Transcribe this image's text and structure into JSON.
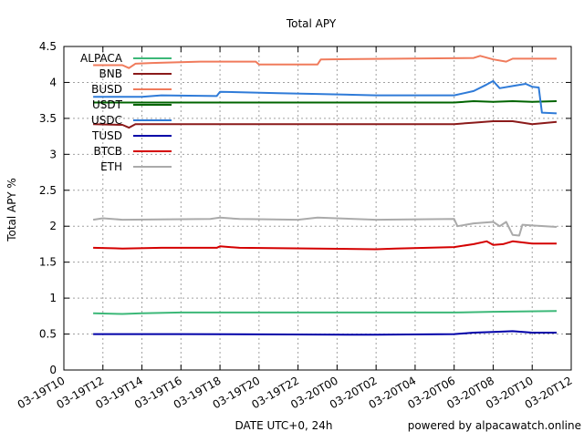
{
  "chart_data": {
    "type": "line",
    "title": "Total APY",
    "xlabel": "DATE UTC+0, 24h",
    "ylabel": "Total APY %",
    "footer": "powered by alpacawatch.online",
    "ylim": [
      0,
      4.5
    ],
    "yticks": [
      "0",
      "0.5",
      "1",
      "1.5",
      "2",
      "2.5",
      "3",
      "3.5",
      "4",
      "4.5"
    ],
    "xlim": [
      "03-19T10",
      "03-20T12"
    ],
    "xticks": [
      "03-19T10",
      "03-19T12",
      "03-19T14",
      "03-19T16",
      "03-19T18",
      "03-19T20",
      "03-19T22",
      "03-20T00",
      "03-20T02",
      "03-20T04",
      "03-20T06",
      "03-20T08",
      "03-20T10",
      "03-20T12"
    ],
    "grid": true,
    "legend_position": "top-left",
    "series": [
      {
        "name": "ALPACA",
        "color": "#3cb878",
        "points": [
          [
            "03-19T11:30",
            0.79
          ],
          [
            "03-19T13:00",
            0.78
          ],
          [
            "03-19T14:00",
            0.79
          ],
          [
            "03-19T16:00",
            0.8
          ],
          [
            "03-20T06:00",
            0.8
          ],
          [
            "03-20T08:00",
            0.81
          ],
          [
            "03-20T11:15",
            0.82
          ]
        ]
      },
      {
        "name": "BNB",
        "color": "#8b1a1a",
        "points": [
          [
            "03-19T11:30",
            3.42
          ],
          [
            "03-19T13:00",
            3.41
          ],
          [
            "03-19T13:20",
            3.37
          ],
          [
            "03-19T13:40",
            3.42
          ],
          [
            "03-19T16:00",
            3.42
          ],
          [
            "03-20T06:00",
            3.42
          ],
          [
            "03-20T07:00",
            3.44
          ],
          [
            "03-20T08:00",
            3.46
          ],
          [
            "03-20T09:00",
            3.46
          ],
          [
            "03-20T10:00",
            3.42
          ],
          [
            "03-20T11:15",
            3.45
          ]
        ]
      },
      {
        "name": "BUSD",
        "color": "#f07b5c",
        "points": [
          [
            "03-19T11:30",
            4.24
          ],
          [
            "03-19T13:00",
            4.24
          ],
          [
            "03-19T13:20",
            4.2
          ],
          [
            "03-19T13:40",
            4.26
          ],
          [
            "03-19T14:30",
            4.27
          ],
          [
            "03-19T17:00",
            4.29
          ],
          [
            "03-19T19:50",
            4.29
          ],
          [
            "03-19T20:00",
            4.25
          ],
          [
            "03-19T23:00",
            4.25
          ],
          [
            "03-19T23:10",
            4.32
          ],
          [
            "03-20T07:00",
            4.34
          ],
          [
            "03-20T07:20",
            4.37
          ],
          [
            "03-20T08:00",
            4.32
          ],
          [
            "03-20T08:40",
            4.29
          ],
          [
            "03-20T09:00",
            4.33
          ],
          [
            "03-20T11:15",
            4.33
          ]
        ]
      },
      {
        "name": "USDT",
        "color": "#006400",
        "points": [
          [
            "03-19T11:30",
            3.72
          ],
          [
            "03-19T16:00",
            3.72
          ],
          [
            "03-20T06:00",
            3.72
          ],
          [
            "03-20T07:00",
            3.74
          ],
          [
            "03-20T08:00",
            3.73
          ],
          [
            "03-20T09:00",
            3.74
          ],
          [
            "03-20T10:00",
            3.73
          ],
          [
            "03-20T11:15",
            3.74
          ]
        ]
      },
      {
        "name": "USDC",
        "color": "#2f7bd8",
        "points": [
          [
            "03-19T11:30",
            3.8
          ],
          [
            "03-19T14:00",
            3.8
          ],
          [
            "03-19T15:00",
            3.82
          ],
          [
            "03-19T17:50",
            3.81
          ],
          [
            "03-19T18:00",
            3.87
          ],
          [
            "03-19T21:00",
            3.85
          ],
          [
            "03-19T23:00",
            3.84
          ],
          [
            "03-20T02:00",
            3.82
          ],
          [
            "03-20T06:00",
            3.82
          ],
          [
            "03-20T07:00",
            3.88
          ],
          [
            "03-20T07:40",
            3.97
          ],
          [
            "03-20T08:00",
            4.02
          ],
          [
            "03-20T08:20",
            3.92
          ],
          [
            "03-20T09:00",
            3.95
          ],
          [
            "03-20T09:40",
            3.98
          ],
          [
            "03-20T10:00",
            3.94
          ],
          [
            "03-20T10:20",
            3.93
          ],
          [
            "03-20T10:30",
            3.58
          ],
          [
            "03-20T11:15",
            3.57
          ]
        ]
      },
      {
        "name": "TUSD",
        "color": "#0000a8",
        "points": [
          [
            "03-19T11:30",
            0.5
          ],
          [
            "03-19T16:00",
            0.5
          ],
          [
            "03-20T02:00",
            0.49
          ],
          [
            "03-20T06:00",
            0.5
          ],
          [
            "03-20T07:00",
            0.52
          ],
          [
            "03-20T08:00",
            0.53
          ],
          [
            "03-20T09:00",
            0.54
          ],
          [
            "03-20T10:00",
            0.52
          ],
          [
            "03-20T11:15",
            0.52
          ]
        ]
      },
      {
        "name": "BTCB",
        "color": "#d40000",
        "points": [
          [
            "03-19T11:30",
            1.7
          ],
          [
            "03-19T13:00",
            1.69
          ],
          [
            "03-19T15:00",
            1.7
          ],
          [
            "03-19T17:50",
            1.7
          ],
          [
            "03-19T18:00",
            1.72
          ],
          [
            "03-19T19:00",
            1.7
          ],
          [
            "03-20T02:00",
            1.68
          ],
          [
            "03-20T03:00",
            1.69
          ],
          [
            "03-20T06:00",
            1.71
          ],
          [
            "03-20T07:00",
            1.75
          ],
          [
            "03-20T07:40",
            1.79
          ],
          [
            "03-20T08:00",
            1.74
          ],
          [
            "03-20T08:30",
            1.75
          ],
          [
            "03-20T09:00",
            1.79
          ],
          [
            "03-20T10:00",
            1.76
          ],
          [
            "03-20T11:15",
            1.76
          ]
        ]
      },
      {
        "name": "ETH",
        "color": "#aaaaaa",
        "points": [
          [
            "03-19T11:30",
            2.09
          ],
          [
            "03-19T12:00",
            2.11
          ],
          [
            "03-19T13:00",
            2.09
          ],
          [
            "03-19T17:30",
            2.1
          ],
          [
            "03-19T18:00",
            2.12
          ],
          [
            "03-19T19:00",
            2.1
          ],
          [
            "03-19T22:00",
            2.09
          ],
          [
            "03-19T23:00",
            2.12
          ],
          [
            "03-20T02:00",
            2.09
          ],
          [
            "03-20T06:00",
            2.1
          ],
          [
            "03-20T06:10",
            2.0
          ],
          [
            "03-20T07:00",
            2.04
          ],
          [
            "03-20T08:00",
            2.06
          ],
          [
            "03-20T08:20",
            2.0
          ],
          [
            "03-20T08:40",
            2.06
          ],
          [
            "03-20T09:00",
            1.88
          ],
          [
            "03-20T09:20",
            1.87
          ],
          [
            "03-20T09:30",
            2.02
          ],
          [
            "03-20T10:00",
            2.01
          ],
          [
            "03-20T11:15",
            1.99
          ]
        ]
      }
    ]
  }
}
